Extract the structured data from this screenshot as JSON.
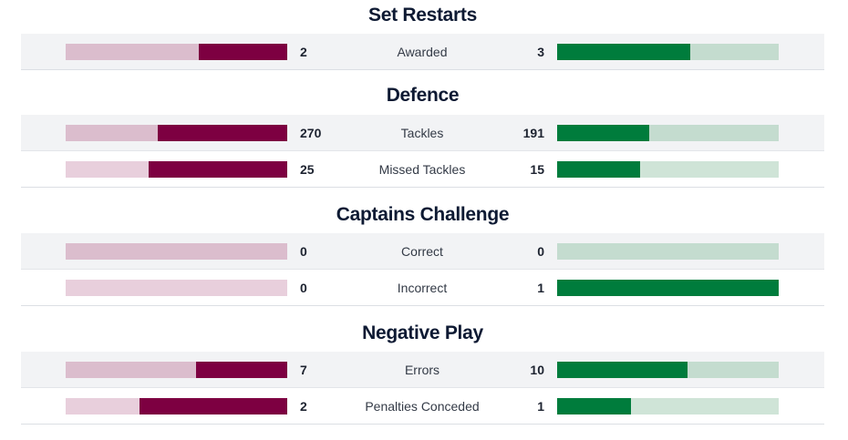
{
  "colors": {
    "home_fill": "#7d0041",
    "home_track_shaded": "#dbbdcd",
    "home_track_plain": "#e8cfdc",
    "away_fill": "#007c3c",
    "away_track_shaded": "#c4dccf",
    "away_track_plain": "#cfe4d7"
  },
  "sections": [
    {
      "title": "Set Restarts",
      "rows": [
        {
          "label": "Awarded",
          "home": "2",
          "away": "3",
          "home_fraction": 0.4,
          "away_fraction": 0.6
        }
      ]
    },
    {
      "title": "Defence",
      "rows": [
        {
          "label": "Tackles",
          "home": "270",
          "away": "191",
          "home_fraction": 0.5857,
          "away_fraction": 0.4143
        },
        {
          "label": "Missed Tackles",
          "home": "25",
          "away": "15",
          "home_fraction": 0.625,
          "away_fraction": 0.375
        }
      ]
    },
    {
      "title": "Captains Challenge",
      "rows": [
        {
          "label": "Correct",
          "home": "0",
          "away": "0",
          "home_fraction": 0,
          "away_fraction": 0
        },
        {
          "label": "Incorrect",
          "home": "0",
          "away": "1",
          "home_fraction": 0,
          "away_fraction": 1
        }
      ]
    },
    {
      "title": "Negative Play",
      "rows": [
        {
          "label": "Errors",
          "home": "7",
          "away": "10",
          "home_fraction": 0.4118,
          "away_fraction": 0.5882
        },
        {
          "label": "Penalties Conceded",
          "home": "2",
          "away": "1",
          "home_fraction": 0.6667,
          "away_fraction": 0.3333
        }
      ]
    }
  ]
}
